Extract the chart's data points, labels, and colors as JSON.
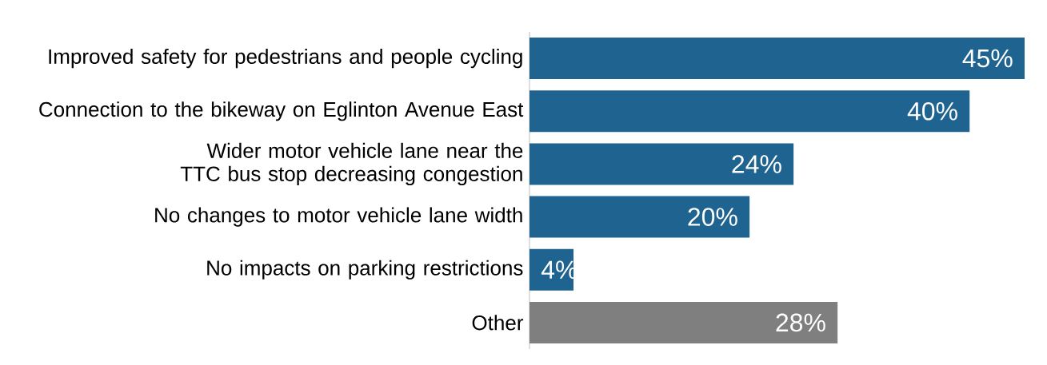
{
  "chart_data": {
    "type": "bar",
    "orientation": "horizontal",
    "categories": [
      "Improved safety for pedestrians and people cycling",
      "Connection to the bikeway on Eglinton Avenue East",
      "Wider motor vehicle lane near the TTC bus stop decreasing congestion",
      "No changes to motor vehicle lane width",
      "No impacts on parking restrictions",
      "Other"
    ],
    "values": [
      45,
      40,
      24,
      20,
      4,
      28
    ],
    "value_labels": [
      "45%",
      "40%",
      "24%",
      "20%",
      "4%",
      "28%"
    ],
    "colors": [
      "#1f6391",
      "#1f6391",
      "#1f6391",
      "#1f6391",
      "#1f6391",
      "#7f7f7f"
    ]
  }
}
